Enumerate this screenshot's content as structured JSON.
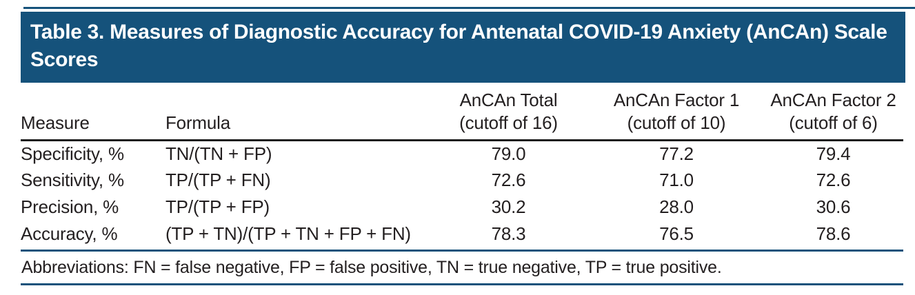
{
  "title": "Table 3. Measures of Diagnostic Accuracy for Antenatal COVID-19 Anxiety (AnCAn) Scale Scores",
  "columns": {
    "measure": "Measure",
    "formula": "Formula",
    "c1_line1": "AnCAn Total",
    "c1_line2": "(cutoff of 16)",
    "c2_line1": "AnCAn Factor 1",
    "c2_line2": "(cutoff of 10)",
    "c3_line1": "AnCAn Factor 2",
    "c3_line2": "(cutoff of 6)"
  },
  "rows": [
    {
      "measure": "Specificity, %",
      "formula": "TN/(TN + FP)",
      "values": [
        "79.0",
        "77.2",
        "79.4"
      ]
    },
    {
      "measure": "Sensitivity, %",
      "formula": "TP/(TP + FN)",
      "values": [
        "72.6",
        "71.0",
        "72.6"
      ]
    },
    {
      "measure": "Precision, %",
      "formula": "TP/(TP + FP)",
      "values": [
        "30.2",
        "28.0",
        "30.6"
      ]
    },
    {
      "measure": "Accuracy, %",
      "formula": "(TP + TN)/(TP + TN + FP + FN)",
      "values": [
        "78.3",
        "76.5",
        "78.6"
      ]
    }
  ],
  "footnote": "Abbreviations: FN = false negative, FP = false positive, TN = true negative, TP = true positive.",
  "colors": {
    "accent_blue": "#15527b",
    "rule_black": "#1c1c1c",
    "text": "#231f20",
    "title_text": "#ffffff"
  },
  "chart_data": {
    "type": "table",
    "title": "Table 3. Measures of Diagnostic Accuracy for Antenatal COVID-19 Anxiety (AnCAn) Scale Scores",
    "columns": [
      "Measure",
      "Formula",
      "AnCAn Total (cutoff of 16)",
      "AnCAn Factor 1 (cutoff of 10)",
      "AnCAn Factor 2 (cutoff of 6)"
    ],
    "rows": [
      [
        "Specificity, %",
        "TN/(TN + FP)",
        79.0,
        77.2,
        79.4
      ],
      [
        "Sensitivity, %",
        "TP/(TP + FN)",
        72.6,
        71.0,
        72.6
      ],
      [
        "Precision, %",
        "TP/(TP + FP)",
        30.2,
        28.0,
        30.6
      ],
      [
        "Accuracy, %",
        "(TP + TN)/(TP + TN + FP + FN)",
        78.3,
        76.5,
        78.6
      ]
    ],
    "footnote": "Abbreviations: FN = false negative, FP = false positive, TN = true negative, TP = true positive."
  }
}
